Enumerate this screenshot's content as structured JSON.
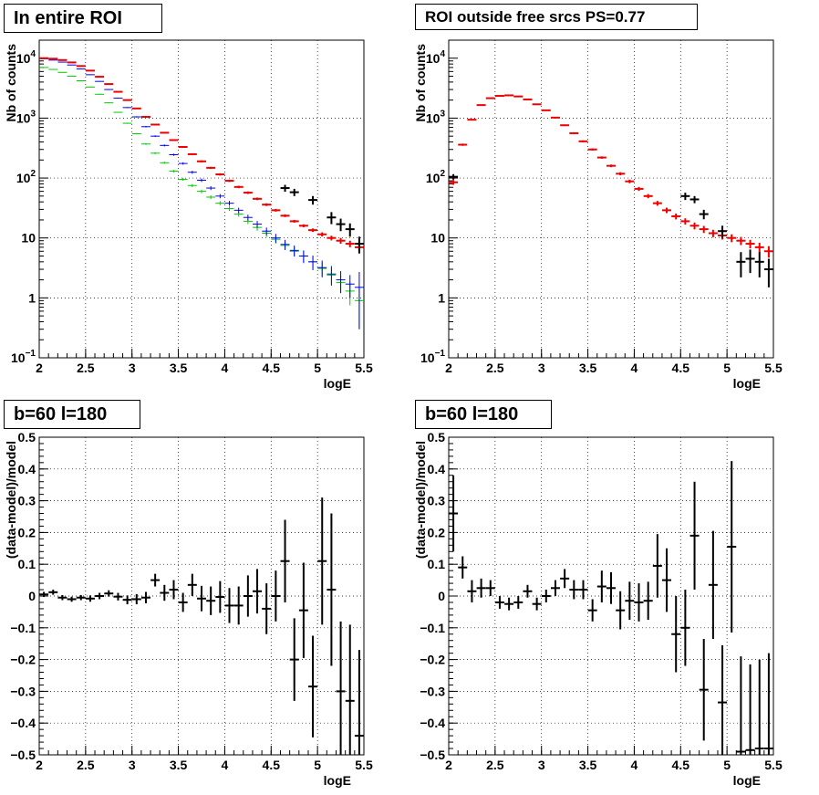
{
  "panels": [
    {
      "title": "In entire ROI",
      "chart_data": {
        "type": "scatter",
        "yscale": "log",
        "ylabel": "Nb of counts",
        "xlabel": "logE",
        "xlim": [
          2,
          5.5
        ],
        "ylim": [
          0.1,
          20000
        ],
        "grid": true,
        "x_ticks": [
          "2",
          "2.5",
          "3",
          "3.5",
          "4",
          "4.5",
          "5",
          "5.5"
        ],
        "y_ticks": [
          {
            "v": 0.1,
            "label": "10",
            "sup": "−1"
          },
          {
            "v": 1,
            "label": "1",
            "sup": ""
          },
          {
            "v": 10,
            "label": "10",
            "sup": ""
          },
          {
            "v": 100,
            "label": "10",
            "sup": "2"
          },
          {
            "v": 1000,
            "label": "10",
            "sup": "3"
          },
          {
            "v": 10000,
            "label": "10",
            "sup": "4"
          }
        ],
        "series": [
          {
            "color": "#00cc00",
            "style": "thin",
            "x": [
              2.05,
              2.15,
              2.25,
              2.35,
              2.45,
              2.55,
              2.65,
              2.75,
              2.85,
              2.95,
              3.05,
              3.15,
              3.25,
              3.35,
              3.45,
              3.55,
              3.65,
              3.75,
              3.85,
              3.95,
              4.05,
              4.15,
              4.25,
              4.35,
              4.45,
              4.55,
              4.65,
              4.75,
              4.85,
              4.95,
              5.05,
              5.15,
              5.25,
              5.35,
              5.45
            ],
            "y": [
              7000,
              6500,
              5800,
              5000,
              4200,
              3300,
              2500,
              1800,
              1250,
              820,
              550,
              370,
              260,
              180,
              130,
              95,
              75,
              60,
              48,
              38,
              31,
              25,
              19,
              15,
              12,
              9.5,
              7.5,
              6,
              5,
              4,
              3.1,
              2.4,
              1.8,
              1.3,
              0.9
            ],
            "err": [
              60,
              55,
              50,
              45,
              40,
              35,
              30,
              25,
              20,
              16,
              13,
              11,
              9,
              7,
              6,
              5,
              4.5,
              4,
              3.5,
              3,
              2.7,
              2.4,
              2,
              1.8,
              1.6,
              1.4,
              1.2,
              1.1,
              1,
              0.9,
              0.8,
              0.7,
              0.6,
              0.55,
              0.6
            ]
          },
          {
            "color": "#0000ee",
            "style": "thin",
            "x": [
              2.05,
              2.15,
              2.25,
              2.35,
              2.45,
              2.55,
              2.65,
              2.75,
              2.85,
              2.95,
              3.05,
              3.15,
              3.25,
              3.35,
              3.45,
              3.55,
              3.65,
              3.75,
              3.85,
              3.95,
              4.05,
              4.15,
              4.25,
              4.35,
              4.45,
              4.55,
              4.65,
              4.75,
              4.85,
              4.95,
              5.05,
              5.15,
              5.25,
              5.35,
              5.45
            ],
            "y": [
              9800,
              9300,
              8600,
              7700,
              6600,
              5300,
              4100,
              3000,
              2150,
              1500,
              1050,
              720,
              500,
              350,
              245,
              175,
              125,
              92,
              68,
              50,
              38,
              29,
              22,
              17,
              13,
              10,
              7.8,
              6.2,
              5,
              4,
              3.2,
              2.5,
              2,
              1.7,
              1.5
            ],
            "err": [
              80,
              75,
              70,
              65,
              60,
              55,
              45,
              40,
              35,
              30,
              25,
              20,
              16,
              13,
              10,
              8,
              7,
              6,
              5,
              4,
              3.5,
              3,
              2.5,
              2.2,
              1.9,
              1.7,
              1.5,
              1.3,
              1.2,
              1.1,
              1,
              0.9,
              0.8,
              0.7,
              1.2
            ]
          },
          {
            "color": "#ee0000",
            "style": "thick",
            "x": [
              2.05,
              2.15,
              2.25,
              2.35,
              2.45,
              2.55,
              2.65,
              2.75,
              2.85,
              2.95,
              3.05,
              3.15,
              3.25,
              3.35,
              3.45,
              3.55,
              3.65,
              3.75,
              3.85,
              3.95,
              4.05,
              4.15,
              4.25,
              4.35,
              4.45,
              4.55,
              4.65,
              4.75,
              4.85,
              4.95,
              5.05,
              5.15,
              5.25,
              5.35,
              5.45
            ],
            "y": [
              10000,
              9800,
              9300,
              8500,
              7400,
              6200,
              4900,
              3700,
              2750,
              2000,
              1450,
              1050,
              780,
              570,
              430,
              330,
              250,
              190,
              148,
              115,
              90,
              71,
              57,
              45,
              36,
              29,
              23.5,
              19,
              16,
              13.5,
              11.5,
              10,
              9,
              8,
              7
            ],
            "err": [
              80,
              75,
              70,
              65,
              60,
              55,
              50,
              45,
              40,
              35,
              30,
              25,
              20,
              16,
              13,
              11,
              9,
              7,
              6,
              5,
              4,
              3.3,
              2.8,
              2.2,
              1.8,
              1.5,
              1.2,
              1,
              0.9,
              0.9,
              0.9,
              0.9,
              1,
              1,
              1.3
            ]
          },
          {
            "color": "#000000",
            "style": "thick",
            "x": [
              4.65,
              4.75,
              4.95,
              5.15,
              5.25,
              5.35,
              5.45
            ],
            "y": [
              68,
              58,
              43,
              22,
              17,
              14,
              8
            ],
            "err": [
              9,
              8,
              7,
              5,
              4,
              3.5,
              2.5
            ]
          }
        ]
      }
    },
    {
      "title": "ROI outside free srcs PS=0.77",
      "chart_data": {
        "type": "scatter",
        "yscale": "log",
        "ylabel": "Nb of counts",
        "xlabel": "logE",
        "xlim": [
          2,
          5.5
        ],
        "ylim": [
          0.1,
          20000
        ],
        "grid": true,
        "x_ticks": [
          "2",
          "2.5",
          "3",
          "3.5",
          "4",
          "4.5",
          "5",
          "5.5"
        ],
        "y_ticks": [
          {
            "v": 0.1,
            "label": "10",
            "sup": "−1"
          },
          {
            "v": 1,
            "label": "1",
            "sup": ""
          },
          {
            "v": 10,
            "label": "10",
            "sup": ""
          },
          {
            "v": 100,
            "label": "10",
            "sup": "2"
          },
          {
            "v": 1000,
            "label": "10",
            "sup": "3"
          },
          {
            "v": 10000,
            "label": "10",
            "sup": "4"
          }
        ],
        "series": [
          {
            "color": "#ee0000",
            "style": "thick",
            "x": [
              2.05,
              2.15,
              2.25,
              2.35,
              2.45,
              2.55,
              2.65,
              2.75,
              2.85,
              2.95,
              3.05,
              3.15,
              3.25,
              3.35,
              3.45,
              3.55,
              3.65,
              3.75,
              3.85,
              3.95,
              4.05,
              4.15,
              4.25,
              4.35,
              4.45,
              4.55,
              4.65,
              4.75,
              4.85,
              4.95,
              5.05,
              5.15,
              5.25,
              5.35,
              5.45
            ],
            "y": [
              85,
              360,
              940,
              1650,
              2150,
              2350,
              2400,
              2300,
              2050,
              1700,
              1350,
              1020,
              760,
              560,
              410,
              300,
              220,
              160,
              118,
              88,
              66,
              50,
              38,
              29,
              23,
              19,
              16,
              14,
              12,
              11,
              10,
              9,
              8,
              7,
              6
            ],
            "err": [
              8,
              15,
              25,
              35,
              40,
              42,
              42,
              40,
              38,
              34,
              30,
              26,
              22,
              18,
              15,
              12,
              10,
              8,
              7,
              6,
              5,
              4,
              3.5,
              3,
              2.6,
              2.3,
              2.1,
              1.9,
              1.7,
              1.6,
              1.5,
              1.4,
              1.3,
              1.3,
              1.3
            ]
          },
          {
            "color": "#000000",
            "style": "thick",
            "x": [
              2.05,
              4.55,
              4.65,
              4.75,
              4.95,
              5.15,
              5.25,
              5.35,
              5.45
            ],
            "y": [
              105,
              50,
              44,
              25,
              13,
              4,
              4.5,
              4,
              3
            ],
            "err": [
              11,
              7,
              6,
              4.5,
              3,
              1.8,
              1.9,
              1.8,
              1.5
            ]
          }
        ]
      }
    },
    {
      "title": "b=60 l=180",
      "chart_data": {
        "type": "scatter",
        "yscale": "linear",
        "ylabel": "(data-model)/model",
        "xlabel": "logE",
        "xlim": [
          2,
          5.5
        ],
        "ylim": [
          -0.5,
          0.5
        ],
        "grid": true,
        "x_ticks": [
          "2",
          "2.5",
          "3",
          "3.5",
          "4",
          "4.5",
          "5",
          "5.5"
        ],
        "y_ticks": [
          {
            "v": -0.5,
            "label": "−0.5"
          },
          {
            "v": -0.4,
            "label": "−0.4"
          },
          {
            "v": -0.3,
            "label": "−0.3"
          },
          {
            "v": -0.2,
            "label": "−0.2"
          },
          {
            "v": -0.1,
            "label": "−0.1"
          },
          {
            "v": 0,
            "label": "0"
          },
          {
            "v": 0.1,
            "label": "0.1"
          },
          {
            "v": 0.2,
            "label": "0.2"
          },
          {
            "v": 0.3,
            "label": "0.3"
          },
          {
            "v": 0.4,
            "label": "0.4"
          },
          {
            "v": 0.5,
            "label": "0.5"
          }
        ],
        "series": [
          {
            "color": "#000000",
            "style": "thick",
            "x": [
              2.05,
              2.15,
              2.25,
              2.35,
              2.45,
              2.55,
              2.65,
              2.75,
              2.85,
              2.95,
              3.05,
              3.15,
              3.25,
              3.35,
              3.45,
              3.55,
              3.65,
              3.75,
              3.85,
              3.95,
              4.05,
              4.15,
              4.25,
              4.35,
              4.45,
              4.55,
              4.65,
              4.75,
              4.85,
              4.95,
              5.05,
              5.15,
              5.25,
              5.35,
              5.45
            ],
            "y": [
              0.005,
              0.012,
              -0.005,
              -0.01,
              -0.005,
              -0.008,
              0.0,
              0.008,
              -0.002,
              -0.012,
              -0.01,
              -0.005,
              0.05,
              0.01,
              0.02,
              -0.02,
              0.035,
              -0.008,
              -0.015,
              -0.003,
              -0.03,
              -0.03,
              0.0,
              0.015,
              -0.04,
              0.0,
              0.11,
              -0.2,
              -0.045,
              -0.285,
              0.11,
              0.02,
              -0.3,
              -0.33,
              -0.44
            ],
            "err": [
              0.008,
              0.008,
              0.008,
              0.008,
              0.008,
              0.01,
              0.01,
              0.01,
              0.012,
              0.014,
              0.016,
              0.018,
              0.02,
              0.025,
              0.03,
              0.03,
              0.035,
              0.04,
              0.045,
              0.05,
              0.055,
              0.06,
              0.065,
              0.07,
              0.08,
              0.08,
              0.13,
              0.13,
              0.15,
              0.16,
              0.2,
              0.24,
              0.22,
              0.24,
              0.27
            ]
          }
        ]
      }
    },
    {
      "title": "b=60 l=180",
      "chart_data": {
        "type": "scatter",
        "yscale": "linear",
        "ylabel": "(data-model)/model",
        "xlabel": "logE",
        "xlim": [
          2,
          5.5
        ],
        "ylim": [
          -0.5,
          0.5
        ],
        "grid": true,
        "x_ticks": [
          "2",
          "2.5",
          "3",
          "3.5",
          "4",
          "4.5",
          "5",
          "5.5"
        ],
        "y_ticks": [
          {
            "v": -0.5,
            "label": "−0.5"
          },
          {
            "v": -0.4,
            "label": "−0.4"
          },
          {
            "v": -0.3,
            "label": "−0.3"
          },
          {
            "v": -0.2,
            "label": "−0.2"
          },
          {
            "v": -0.1,
            "label": "−0.1"
          },
          {
            "v": 0,
            "label": "0"
          },
          {
            "v": 0.1,
            "label": "0.1"
          },
          {
            "v": 0.2,
            "label": "0.2"
          },
          {
            "v": 0.3,
            "label": "0.3"
          },
          {
            "v": 0.4,
            "label": "0.4"
          },
          {
            "v": 0.5,
            "label": "0.5"
          }
        ],
        "series": [
          {
            "color": "#000000",
            "style": "thick",
            "x": [
              2.05,
              2.15,
              2.25,
              2.35,
              2.45,
              2.55,
              2.65,
              2.75,
              2.85,
              2.95,
              3.05,
              3.15,
              3.25,
              3.35,
              3.45,
              3.55,
              3.65,
              3.75,
              3.85,
              3.95,
              4.05,
              4.15,
              4.25,
              4.35,
              4.45,
              4.55,
              4.65,
              4.75,
              4.85,
              4.95,
              5.05,
              5.15,
              5.25,
              5.35,
              5.45
            ],
            "y": [
              0.26,
              0.09,
              0.015,
              0.025,
              0.025,
              -0.02,
              -0.025,
              -0.02,
              0.015,
              -0.025,
              0.0,
              0.025,
              0.055,
              0.02,
              0.02,
              -0.045,
              0.03,
              0.025,
              -0.045,
              -0.015,
              -0.02,
              -0.015,
              0.095,
              0.05,
              -0.12,
              -0.1,
              0.19,
              -0.295,
              0.035,
              -0.335,
              0.155,
              -0.49,
              -0.485,
              -0.48,
              -0.48
            ],
            "err": [
              0.12,
              0.035,
              0.035,
              0.03,
              0.025,
              0.02,
              0.02,
              0.02,
              0.02,
              0.02,
              0.02,
              0.025,
              0.03,
              0.03,
              0.03,
              0.035,
              0.05,
              0.05,
              0.06,
              0.06,
              0.06,
              0.06,
              0.1,
              0.1,
              0.12,
              0.12,
              0.17,
              0.16,
              0.17,
              0.18,
              0.27,
              0.3,
              0.27,
              0.28,
              0.3
            ]
          }
        ]
      }
    }
  ]
}
